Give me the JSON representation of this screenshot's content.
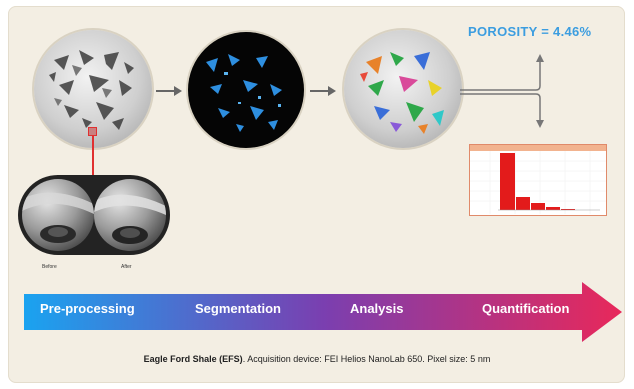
{
  "result": {
    "porosity_text": "POROSITY = 4.46%"
  },
  "zoom": {
    "before_label": "Before",
    "after_label": "After"
  },
  "stages": [
    {
      "label": "Pre-processing"
    },
    {
      "label": "Segmentation"
    },
    {
      "label": "Analysis"
    },
    {
      "label": "Quantification"
    }
  ],
  "caption": {
    "sample": "Eagle Ford Shale (EFS)",
    "details": ". Acquisition device: FEI Helios NanoLab 650. Pixel size: 5 nm"
  },
  "colors": {
    "arrow_start": "#1aa3f0",
    "arrow_mid": "#7a3fb0",
    "arrow_end": "#e8285a",
    "porosity_text": "#3b9de0",
    "segment_blue": "#2e8fe0",
    "histogram_bar": "#e31b1b"
  }
}
